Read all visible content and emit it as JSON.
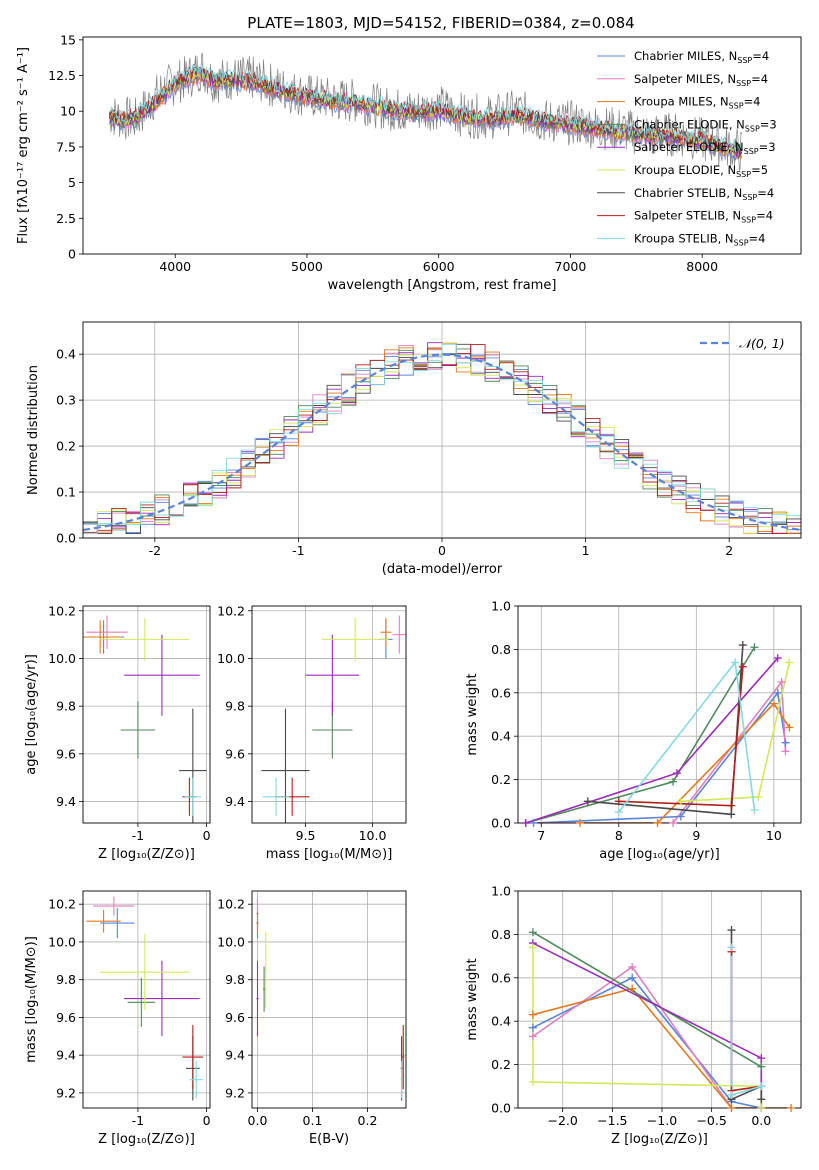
{
  "figure": {
    "title": "PLATE=1803, MJD=54152, FIBERID=0384, z=0.084"
  },
  "models": [
    {
      "name": "Chabrier MILES, N_SSP=4",
      "label_main": "Chabrier MILES, N",
      "label_sub": "SSP",
      "label_tail": "=4",
      "color": "#5b84d6"
    },
    {
      "name": "Salpeter MILES, N_SSP=4",
      "label_main": "Salpeter MILES, N",
      "label_sub": "SSP",
      "label_tail": "=4",
      "color": "#e07fbf"
    },
    {
      "name": "Kroupa MILES, N_SSP=4",
      "label_main": "Kroupa MILES, N",
      "label_sub": "SSP",
      "label_tail": "=4",
      "color": "#e07a1f"
    },
    {
      "name": "Chabrier ELODIE, N_SSP=3",
      "label_main": "Chabrier ELODIE, N",
      "label_sub": "SSP",
      "label_tail": "=3",
      "color": "#4e8a5a"
    },
    {
      "name": "Salpeter ELODIE, N_SSP=3",
      "label_main": "Salpeter ELODIE, N",
      "label_sub": "SSP",
      "label_tail": "=3",
      "color": "#9a2db8"
    },
    {
      "name": "Kroupa ELODIE, N_SSP=5",
      "label_main": "Kroupa ELODIE, N",
      "label_sub": "SSP",
      "label_tail": "=5",
      "color": "#d3e85a"
    },
    {
      "name": "Chabrier STELIB, N_SSP=4",
      "label_main": "Chabrier STELIB, N",
      "label_sub": "SSP",
      "label_tail": "=4",
      "color": "#4a4a4a"
    },
    {
      "name": "Salpeter STELIB, N_SSP=4",
      "label_main": "Salpeter STELIB, N",
      "label_sub": "SSP",
      "label_tail": "=4",
      "color": "#b3201c"
    },
    {
      "name": "Kroupa STELIB, N_SSP=4",
      "label_main": "Kroupa STELIB, N",
      "label_sub": "SSP",
      "label_tail": "=4",
      "color": "#85d9df"
    }
  ],
  "chart_data": [
    {
      "id": "spectrum",
      "type": "line",
      "xlabel": "wavelength [Angstrom, rest frame]",
      "ylabel": "Flux [fλ10⁻¹⁷ erg cm⁻² s⁻¹ A⁻¹]",
      "xlim": [
        3300,
        8750
      ],
      "ylim": [
        0,
        15.2
      ],
      "xticks": [
        4000,
        5000,
        6000,
        7000,
        8000
      ],
      "yticks": [
        0.0,
        2.5,
        5.0,
        7.5,
        10.0,
        12.5,
        15.0
      ],
      "legend": "top-right",
      "data_color": "#808080",
      "data": {
        "x": [
          3500,
          3600,
          3700,
          3800,
          3900,
          4000,
          4100,
          4200,
          4300,
          4400,
          4600,
          4800,
          5000,
          5200,
          5400,
          5600,
          5800,
          6000,
          6200,
          6400,
          6600,
          6800,
          7000,
          7200,
          7400,
          7600,
          7800,
          8000,
          8200,
          8300
        ],
        "y": [
          9.8,
          9.5,
          9.4,
          10.5,
          11.5,
          12.0,
          12.4,
          13.0,
          12.1,
          12.3,
          12.3,
          11.6,
          11.1,
          10.8,
          10.7,
          10.2,
          10.0,
          10.3,
          9.7,
          9.6,
          10.0,
          9.3,
          9.2,
          8.9,
          8.7,
          8.3,
          8.4,
          8.0,
          7.5,
          7.2
        ]
      },
      "model": {
        "x": [
          3500,
          3600,
          3700,
          3800,
          3900,
          4000,
          4100,
          4200,
          4300,
          4400,
          4600,
          4800,
          5000,
          5200,
          5400,
          5600,
          5800,
          6000,
          6200,
          6400,
          6600,
          6800,
          7000,
          7200,
          7400,
          7600,
          7800,
          8000,
          8200,
          8300
        ],
        "y": [
          9.6,
          9.3,
          9.6,
          10.2,
          11.0,
          12.0,
          12.4,
          12.6,
          12.1,
          12.2,
          12.0,
          11.4,
          11.0,
          10.7,
          10.5,
          10.2,
          9.9,
          10.0,
          9.6,
          9.4,
          9.7,
          9.3,
          9.0,
          8.8,
          8.5,
          8.3,
          8.2,
          7.9,
          7.4,
          7.1
        ]
      }
    },
    {
      "id": "residuals",
      "type": "line",
      "xlabel": "(data-model)/error",
      "ylabel": "Normed distribution",
      "xlim": [
        -2.5,
        2.5
      ],
      "ylim": [
        0,
        0.47
      ],
      "xticks": [
        -2,
        -1,
        0,
        1,
        2
      ],
      "yticks": [
        0.0,
        0.1,
        0.2,
        0.3,
        0.4
      ],
      "legend": "top-right",
      "legend_label": "𝒩(0, 1)",
      "normal_color": "#5b84d6"
    },
    {
      "id": "age_vs_Z",
      "type": "scatter",
      "xlabel": "Z [log₁₀(Z/Z⊙)]",
      "ylabel": "age  [log₁₀(age/yr)]",
      "xlim": [
        -1.8,
        0.05
      ],
      "ylim": [
        9.31,
        10.22
      ],
      "xticks": [
        -1,
        0
      ],
      "yticks": [
        9.4,
        9.6,
        9.8,
        10.0,
        10.2
      ],
      "points": [
        {
          "x": -1.5,
          "y": 10.09,
          "xerr": 0.3,
          "yerr": 0.07,
          "m": 0
        },
        {
          "x": -1.45,
          "y": 10.11,
          "xerr": 0.3,
          "yerr": 0.07,
          "m": 1
        },
        {
          "x": -1.55,
          "y": 10.09,
          "xerr": 0.3,
          "yerr": 0.07,
          "m": 2
        },
        {
          "x": -1.0,
          "y": 9.7,
          "xerr": 0.25,
          "yerr": 0.12,
          "m": 3
        },
        {
          "x": -0.65,
          "y": 9.93,
          "xerr": 0.55,
          "yerr": 0.17,
          "m": 4
        },
        {
          "x": -0.9,
          "y": 10.08,
          "xerr": 0.65,
          "yerr": 0.09,
          "m": 5
        },
        {
          "x": -0.2,
          "y": 9.53,
          "xerr": 0.2,
          "yerr": 0.26,
          "m": 6
        },
        {
          "x": -0.25,
          "y": 9.42,
          "xerr": 0.1,
          "yerr": 0.08,
          "m": 7
        },
        {
          "x": -0.2,
          "y": 9.42,
          "xerr": 0.12,
          "yerr": 0.08,
          "m": 8
        }
      ]
    },
    {
      "id": "age_vs_mass",
      "type": "scatter",
      "xlabel": "mass [log₁₀(M/M⊙)]",
      "ylabel": "",
      "xlim": [
        9.1,
        10.25
      ],
      "ylim": [
        9.31,
        10.22
      ],
      "xticks": [
        9.5,
        10.0
      ],
      "yticks": [
        9.4,
        9.6,
        9.8,
        10.0,
        10.2
      ],
      "points": [
        {
          "x": 10.1,
          "y": 10.08,
          "xerr": 0.05,
          "yerr": 0.08,
          "m": 0
        },
        {
          "x": 10.2,
          "y": 10.1,
          "xerr": 0.05,
          "yerr": 0.08,
          "m": 1
        },
        {
          "x": 10.1,
          "y": 10.11,
          "xerr": 0.04,
          "yerr": 0.06,
          "m": 2
        },
        {
          "x": 9.7,
          "y": 9.7,
          "xerr": 0.15,
          "yerr": 0.12,
          "m": 3
        },
        {
          "x": 9.7,
          "y": 9.93,
          "xerr": 0.2,
          "yerr": 0.17,
          "m": 4
        },
        {
          "x": 9.87,
          "y": 10.08,
          "xerr": 0.25,
          "yerr": 0.09,
          "m": 5
        },
        {
          "x": 9.35,
          "y": 9.53,
          "xerr": 0.18,
          "yerr": 0.26,
          "m": 6
        },
        {
          "x": 9.4,
          "y": 9.42,
          "xerr": 0.13,
          "yerr": 0.08,
          "m": 7
        },
        {
          "x": 9.28,
          "y": 9.42,
          "xerr": 0.1,
          "yerr": 0.08,
          "m": 8
        }
      ]
    },
    {
      "id": "massweight_vs_age",
      "type": "line",
      "xlabel": "age  [log₁₀(age/yr)]",
      "ylabel": "mass weight",
      "xlim": [
        6.7,
        10.35
      ],
      "ylim": [
        0,
        1.0
      ],
      "xticks": [
        7,
        8,
        9,
        10
      ],
      "yticks": [
        0.0,
        0.2,
        0.4,
        0.6,
        0.8,
        1.0
      ],
      "series": [
        {
          "m": 0,
          "x": [
            6.9,
            8.8,
            10.05,
            10.15
          ],
          "y": [
            0.0,
            0.03,
            0.6,
            0.37
          ]
        },
        {
          "m": 1,
          "x": [
            6.8,
            8.7,
            10.1,
            10.15
          ],
          "y": [
            0.0,
            0.0,
            0.65,
            0.33
          ]
        },
        {
          "m": 2,
          "x": [
            7.5,
            8.5,
            10.0,
            10.2
          ],
          "y": [
            0.0,
            0.0,
            0.55,
            0.44
          ]
        },
        {
          "m": 3,
          "x": [
            6.8,
            8.7,
            9.75
          ],
          "y": [
            0.0,
            0.19,
            0.81
          ]
        },
        {
          "m": 4,
          "x": [
            6.8,
            8.75,
            10.05
          ],
          "y": [
            0.0,
            0.23,
            0.76
          ]
        },
        {
          "m": 5,
          "x": [
            8.8,
            9.8,
            10.2
          ],
          "y": [
            0.1,
            0.12,
            0.74
          ]
        },
        {
          "m": 6,
          "x": [
            7.6,
            9.45,
            9.6
          ],
          "y": [
            0.1,
            0.04,
            0.82
          ]
        },
        {
          "m": 7,
          "x": [
            8.0,
            9.45,
            9.6
          ],
          "y": [
            0.1,
            0.08,
            0.72
          ]
        },
        {
          "m": 8,
          "x": [
            8.0,
            9.5,
            9.75
          ],
          "y": [
            0.05,
            0.74,
            0.06
          ]
        }
      ]
    },
    {
      "id": "mass_vs_Z",
      "type": "scatter",
      "xlabel": "Z [log₁₀(Z/Z⊙)]",
      "ylabel": "mass [log₁₀(M/M⊙)]",
      "xlim": [
        -1.8,
        0.05
      ],
      "ylim": [
        9.12,
        10.27
      ],
      "xticks": [
        -1,
        0
      ],
      "yticks": [
        9.2,
        9.4,
        9.6,
        9.8,
        10.0,
        10.2
      ],
      "points": [
        {
          "x": -1.3,
          "y": 10.1,
          "xerr": 0.25,
          "yerr": 0.08,
          "m": 0
        },
        {
          "x": -1.35,
          "y": 10.19,
          "xerr": 0.3,
          "yerr": 0.05,
          "m": 1
        },
        {
          "x": -1.5,
          "y": 10.11,
          "xerr": 0.25,
          "yerr": 0.06,
          "m": 2
        },
        {
          "x": -0.95,
          "y": 9.68,
          "xerr": 0.2,
          "yerr": 0.13,
          "m": 3
        },
        {
          "x": -0.65,
          "y": 9.7,
          "xerr": 0.55,
          "yerr": 0.2,
          "m": 4
        },
        {
          "x": -0.9,
          "y": 9.84,
          "xerr": 0.65,
          "yerr": 0.2,
          "m": 5
        },
        {
          "x": -0.2,
          "y": 9.33,
          "xerr": 0.1,
          "yerr": 0.17,
          "m": 6
        },
        {
          "x": -0.2,
          "y": 9.39,
          "xerr": 0.15,
          "yerr": 0.17,
          "m": 7
        },
        {
          "x": -0.15,
          "y": 9.27,
          "xerr": 0.1,
          "yerr": 0.1,
          "m": 8
        }
      ]
    },
    {
      "id": "mass_vs_EBV",
      "type": "scatter",
      "xlabel": "E(B-V)",
      "ylabel": "",
      "xlim": [
        -0.01,
        0.27
      ],
      "ylim": [
        9.12,
        10.27
      ],
      "xticks": [
        0.0,
        0.1,
        0.2
      ],
      "yticks": [
        9.2,
        9.4,
        9.6,
        9.8,
        10.0,
        10.2
      ],
      "points": [
        {
          "x": 0.0,
          "y": 10.1,
          "xerr": 0.002,
          "yerr": 0.08,
          "m": 0
        },
        {
          "x": 0.0,
          "y": 10.15,
          "xerr": 0.002,
          "yerr": 0.08,
          "m": 1
        },
        {
          "x": 0.0,
          "y": 10.1,
          "xerr": 0.002,
          "yerr": 0.06,
          "m": 2
        },
        {
          "x": 0.012,
          "y": 9.75,
          "xerr": 0.002,
          "yerr": 0.12,
          "m": 3
        },
        {
          "x": 0.0,
          "y": 9.7,
          "xerr": 0.002,
          "yerr": 0.2,
          "m": 4
        },
        {
          "x": 0.015,
          "y": 9.85,
          "xerr": 0.002,
          "yerr": 0.2,
          "m": 5
        },
        {
          "x": 0.262,
          "y": 9.33,
          "xerr": 0.002,
          "yerr": 0.17,
          "m": 6
        },
        {
          "x": 0.265,
          "y": 9.39,
          "xerr": 0.002,
          "yerr": 0.17,
          "m": 7
        },
        {
          "x": 0.262,
          "y": 9.27,
          "xerr": 0.002,
          "yerr": 0.1,
          "m": 8
        }
      ]
    },
    {
      "id": "massweight_vs_Z",
      "type": "line",
      "xlabel": "Z [log₁₀(Z/Z⊙)]",
      "ylabel": "mass weight",
      "xlim": [
        -2.45,
        0.4
      ],
      "ylim": [
        0,
        1.0
      ],
      "xticks": [
        -2.0,
        -1.5,
        -1.0,
        -0.5,
        0.0
      ],
      "yticks": [
        0.0,
        0.2,
        0.4,
        0.6,
        0.8,
        1.0
      ],
      "series": [
        {
          "m": 0,
          "x": [
            -2.3,
            -1.3,
            -0.3,
            0.0
          ],
          "y": [
            0.37,
            0.6,
            0.03,
            0.0
          ]
        },
        {
          "m": 1,
          "x": [
            -2.3,
            -1.3,
            -0.3,
            0.0
          ],
          "y": [
            0.33,
            0.65,
            0.0,
            0.0
          ]
        },
        {
          "m": 2,
          "x": [
            -2.3,
            -1.3,
            -0.3,
            0.3
          ],
          "y": [
            0.43,
            0.55,
            0.0,
            0.0
          ]
        },
        {
          "m": 3,
          "x": [
            -2.3,
            0.0,
            0.0
          ],
          "y": [
            0.81,
            0.19,
            0.0
          ]
        },
        {
          "m": 4,
          "x": [
            -2.3,
            0.0,
            0.0
          ],
          "y": [
            0.76,
            0.23,
            0.0
          ]
        },
        {
          "m": 5,
          "x": [
            -2.3,
            -2.3,
            0.0,
            0.0
          ],
          "y": [
            0.74,
            0.12,
            0.1,
            0.0
          ]
        },
        {
          "m": 6,
          "x": [
            -0.3,
            -0.3,
            0.0,
            0.0
          ],
          "y": [
            0.82,
            0.04,
            0.1,
            0.04
          ]
        },
        {
          "m": 7,
          "x": [
            -0.3,
            -0.3,
            0.0
          ],
          "y": [
            0.72,
            0.08,
            0.1
          ]
        },
        {
          "m": 8,
          "x": [
            -0.3,
            -0.3,
            0.0
          ],
          "y": [
            0.74,
            0.06,
            0.1
          ]
        }
      ]
    }
  ]
}
